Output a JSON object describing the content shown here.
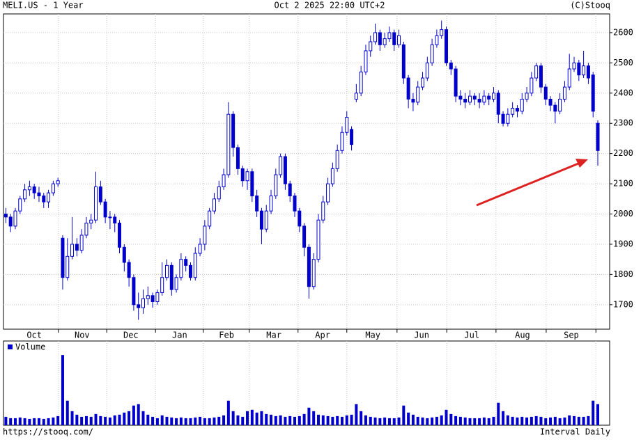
{
  "chart_data": {
    "type": "candlestick",
    "title": "MELI.US - 1 Year",
    "subtitle": "Oct 2 2025 22:00 UTC+2",
    "source": "(C)Stooq",
    "url": "https://stooq.com/",
    "interval": "Interval Daily",
    "color": "#0000cc",
    "grid": true,
    "open": [
      2000,
      1990,
      1960,
      2010,
      2050,
      2080,
      2090,
      2070,
      2060,
      2040,
      2070,
      2100,
      1920,
      1790,
      1860,
      1900,
      1880,
      1930,
      1970,
      1980,
      2090,
      2040,
      1990,
      1990,
      1970,
      1890,
      1840,
      1790,
      1700,
      1690,
      1720,
      1730,
      1710,
      1740,
      1790,
      1830,
      1750,
      1790,
      1850,
      1830,
      1790,
      1870,
      1900,
      1960,
      2010,
      2050,
      2090,
      2130,
      2330,
      2220,
      2150,
      2110,
      2140,
      2060,
      2010,
      1950,
      2010,
      2060,
      2130,
      2190,
      2100,
      2060,
      2010,
      1960,
      1890,
      1760,
      1850,
      1980,
      2040,
      2100,
      2150,
      2210,
      2270,
      2280,
      2380,
      2400,
      2470,
      2540,
      2570,
      2600,
      2560,
      2580,
      2600,
      2560,
      2560,
      2450,
      2380,
      2370,
      2420,
      2450,
      2500,
      2560,
      2590,
      2610,
      2500,
      2480,
      2390,
      2380,
      2370,
      2390,
      2380,
      2370,
      2390,
      2380,
      2400,
      2330,
      2300,
      2330,
      2350,
      2340,
      2380,
      2400,
      2450,
      2490,
      2420,
      2380,
      2360,
      2340,
      2380,
      2420,
      2480,
      2500,
      2460,
      2490,
      2460,
      2300
    ],
    "high": [
      2020,
      2000,
      2020,
      2060,
      2100,
      2110,
      2100,
      2090,
      2070,
      2080,
      2110,
      2120,
      1930,
      1920,
      1990,
      1920,
      1950,
      1990,
      2000,
      2140,
      2110,
      2050,
      2010,
      2000,
      1980,
      1900,
      1850,
      1800,
      1740,
      1750,
      1760,
      1740,
      1750,
      1840,
      1850,
      1840,
      1800,
      1870,
      1860,
      1840,
      1890,
      1920,
      1980,
      2020,
      2070,
      2110,
      2150,
      2370,
      2340,
      2230,
      2160,
      2150,
      2150,
      2080,
      2020,
      2030,
      2080,
      2150,
      2200,
      2200,
      2110,
      2070,
      2020,
      1970,
      1900,
      1870,
      2000,
      2060,
      2120,
      2170,
      2230,
      2290,
      2340,
      2290,
      2430,
      2490,
      2560,
      2590,
      2630,
      2610,
      2600,
      2620,
      2610,
      2610,
      2570,
      2460,
      2400,
      2440,
      2470,
      2520,
      2580,
      2610,
      2640,
      2620,
      2510,
      2490,
      2410,
      2400,
      2410,
      2400,
      2400,
      2410,
      2400,
      2420,
      2410,
      2340,
      2350,
      2370,
      2360,
      2400,
      2420,
      2470,
      2500,
      2500,
      2430,
      2390,
      2370,
      2400,
      2440,
      2530,
      2520,
      2510,
      2540,
      2500,
      2470,
      2310
    ],
    "low": [
      1970,
      1940,
      1950,
      2000,
      2040,
      2060,
      2050,
      2040,
      2020,
      2020,
      2060,
      2090,
      1750,
      1780,
      1850,
      1860,
      1870,
      1920,
      1950,
      1970,
      2030,
      1970,
      1950,
      1940,
      1870,
      1810,
      1760,
      1680,
      1650,
      1670,
      1700,
      1690,
      1700,
      1730,
      1780,
      1730,
      1740,
      1780,
      1810,
      1780,
      1780,
      1860,
      1880,
      1950,
      2000,
      2040,
      2080,
      2120,
      2190,
      2130,
      2090,
      2080,
      2040,
      1990,
      1900,
      1940,
      2000,
      2050,
      2120,
      2080,
      2040,
      1990,
      1940,
      1860,
      1720,
      1750,
      1840,
      1970,
      2030,
      2090,
      2140,
      2200,
      2260,
      2210,
      2370,
      2390,
      2460,
      2520,
      2560,
      2540,
      2550,
      2570,
      2540,
      2550,
      2430,
      2350,
      2340,
      2360,
      2410,
      2440,
      2490,
      2550,
      2580,
      2490,
      2460,
      2370,
      2360,
      2350,
      2360,
      2360,
      2350,
      2360,
      2360,
      2370,
      2300,
      2290,
      2290,
      2320,
      2320,
      2330,
      2370,
      2390,
      2440,
      2400,
      2360,
      2340,
      2300,
      2330,
      2370,
      2410,
      2470,
      2440,
      2450,
      2430,
      2320,
      2160
    ],
    "close": [
      1990,
      1960,
      2010,
      2050,
      2080,
      2090,
      2070,
      2060,
      2040,
      2070,
      2100,
      2110,
      1790,
      1860,
      1900,
      1880,
      1930,
      1970,
      1980,
      2090,
      2040,
      1990,
      1990,
      1970,
      1890,
      1840,
      1790,
      1700,
      1690,
      1720,
      1730,
      1710,
      1740,
      1790,
      1830,
      1750,
      1790,
      1850,
      1830,
      1790,
      1870,
      1900,
      1960,
      2010,
      2050,
      2090,
      2130,
      2330,
      2220,
      2150,
      2110,
      2140,
      2060,
      2010,
      1950,
      2010,
      2060,
      2130,
      2190,
      2100,
      2060,
      2010,
      1960,
      1890,
      1760,
      1850,
      1980,
      2040,
      2100,
      2150,
      2210,
      2270,
      2320,
      2230,
      2400,
      2470,
      2540,
      2570,
      2600,
      2560,
      2580,
      2600,
      2560,
      2590,
      2450,
      2380,
      2370,
      2420,
      2450,
      2500,
      2560,
      2590,
      2610,
      2500,
      2480,
      2390,
      2380,
      2370,
      2390,
      2380,
      2370,
      2390,
      2380,
      2400,
      2330,
      2300,
      2330,
      2350,
      2340,
      2380,
      2400,
      2450,
      2490,
      2420,
      2380,
      2360,
      2340,
      2380,
      2420,
      2480,
      2500,
      2460,
      2490,
      2450,
      2340,
      2210
    ],
    "ylim": [
      1619,
      2662
    ],
    "yticks": [
      1700,
      1800,
      1900,
      2000,
      2100,
      2200,
      2300,
      2400,
      2500,
      2600
    ],
    "xlim": [
      0,
      128
    ],
    "xticks": [
      11.6,
      21.8,
      32.1,
      42.2,
      51.9,
      62.2,
      72.5,
      83.1,
      93.6,
      104.0,
      114.6,
      125.1
    ],
    "month_labels": [
      {
        "value": 6.5,
        "label": "Oct"
      },
      {
        "value": 16.6,
        "label": "Nov"
      },
      {
        "value": 26.9,
        "label": "Dec"
      },
      {
        "value": 37.2,
        "label": "Jan"
      },
      {
        "value": 47.1,
        "label": "Feb"
      },
      {
        "value": 57.1,
        "label": "Mar"
      },
      {
        "value": 67.4,
        "label": "Apr"
      },
      {
        "value": 78.0,
        "label": "May"
      },
      {
        "value": 88.3,
        "label": "Jun"
      },
      {
        "value": 98.9,
        "label": "Jul"
      },
      {
        "value": 109.6,
        "label": "Aug"
      },
      {
        "value": 119.9,
        "label": "Sep"
      }
    ],
    "volume": {
      "name": "Volume",
      "ylim": [
        0,
        1.2
      ],
      "values": [
        0.12,
        0.1,
        0.1,
        0.11,
        0.1,
        0.09,
        0.1,
        0.1,
        0.09,
        0.1,
        0.11,
        0.13,
        1.0,
        0.35,
        0.2,
        0.15,
        0.12,
        0.13,
        0.12,
        0.16,
        0.13,
        0.12,
        0.11,
        0.14,
        0.15,
        0.18,
        0.2,
        0.28,
        0.3,
        0.2,
        0.15,
        0.12,
        0.1,
        0.14,
        0.12,
        0.11,
        0.1,
        0.11,
        0.1,
        0.1,
        0.11,
        0.12,
        0.1,
        0.1,
        0.11,
        0.12,
        0.14,
        0.35,
        0.2,
        0.14,
        0.12,
        0.2,
        0.22,
        0.18,
        0.2,
        0.16,
        0.15,
        0.13,
        0.14,
        0.12,
        0.13,
        0.12,
        0.13,
        0.16,
        0.25,
        0.2,
        0.15,
        0.14,
        0.13,
        0.12,
        0.13,
        0.12,
        0.14,
        0.15,
        0.3,
        0.2,
        0.14,
        0.12,
        0.11,
        0.1,
        0.11,
        0.1,
        0.1,
        0.11,
        0.28,
        0.18,
        0.15,
        0.12,
        0.11,
        0.1,
        0.11,
        0.12,
        0.14,
        0.22,
        0.16,
        0.13,
        0.12,
        0.11,
        0.1,
        0.1,
        0.1,
        0.11,
        0.1,
        0.12,
        0.32,
        0.2,
        0.14,
        0.12,
        0.11,
        0.12,
        0.11,
        0.12,
        0.13,
        0.12,
        0.1,
        0.11,
        0.12,
        0.1,
        0.11,
        0.14,
        0.13,
        0.12,
        0.12,
        0.13,
        0.35,
        0.3
      ]
    }
  }
}
